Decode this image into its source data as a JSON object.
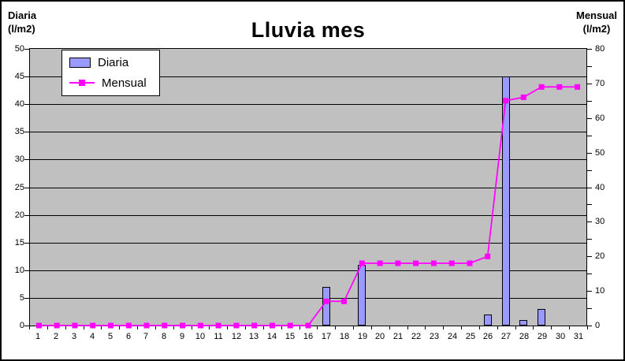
{
  "header": {
    "left_axis_title": {
      "line1": "Diaria",
      "line2": "(l/m2)"
    },
    "right_axis_title": {
      "line1": "Mensual",
      "line2": "(l/m2)"
    }
  },
  "legend": {
    "items": [
      {
        "label": "Diaria",
        "type": "bar",
        "color": "#9999FF"
      },
      {
        "label": "Mensual",
        "type": "line",
        "color": "#FF00FF"
      }
    ]
  },
  "chart_data": {
    "type": "bar+line",
    "title": "Lluvia mes",
    "categories": [
      "1",
      "2",
      "3",
      "4",
      "5",
      "6",
      "7",
      "8",
      "9",
      "10",
      "11",
      "12",
      "13",
      "14",
      "15",
      "16",
      "17",
      "18",
      "19",
      "20",
      "21",
      "22",
      "23",
      "24",
      "25",
      "26",
      "27",
      "28",
      "29",
      "30",
      "31"
    ],
    "series": [
      {
        "name": "Diaria",
        "type": "bar",
        "axis": "left",
        "color": "#9999FF",
        "values": [
          0,
          0,
          0,
          0,
          0,
          0,
          0,
          0,
          0,
          0,
          0,
          0,
          0,
          0,
          0,
          0,
          7,
          0,
          11,
          0,
          0,
          0,
          0,
          0,
          0,
          2,
          45,
          1,
          3,
          0,
          0
        ]
      },
      {
        "name": "Mensual",
        "type": "line",
        "axis": "right",
        "color": "#FF00FF",
        "values": [
          0,
          0,
          0,
          0,
          0,
          0,
          0,
          0,
          0,
          0,
          0,
          0,
          0,
          0,
          0,
          0,
          7,
          7,
          18,
          18,
          18,
          18,
          18,
          18,
          18,
          20,
          65,
          66,
          69,
          69,
          69
        ]
      }
    ],
    "left_axis": {
      "label": "Diaria (l/m2)",
      "min": 0,
      "max": 50,
      "step": 5,
      "tick_labels": [
        0,
        5,
        10,
        15,
        20,
        25,
        30,
        35,
        40,
        45,
        50
      ]
    },
    "right_axis": {
      "label": "Mensual (l/m2)",
      "min": 0,
      "max": 80,
      "label_step": 10,
      "tick_step": 5,
      "tick_labels": [
        0,
        10,
        20,
        30,
        40,
        50,
        60,
        70,
        80
      ]
    },
    "plot_background": "#C0C0C0",
    "grid": true,
    "grid_color": "#000000",
    "legend_position": "top-left-inside"
  }
}
